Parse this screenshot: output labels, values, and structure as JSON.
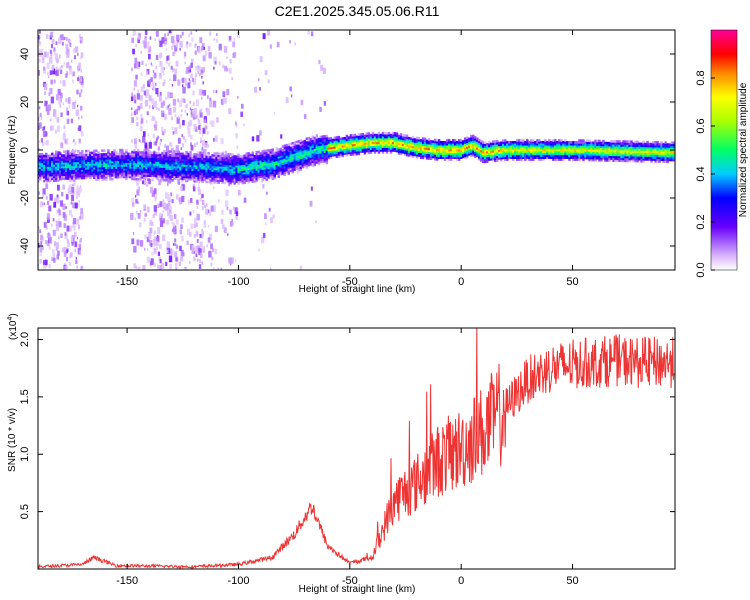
{
  "figure": {
    "title": "C2E1.2025.345.05.06.R11"
  },
  "chart_data": [
    {
      "type": "heatmap",
      "name": "spectrogram",
      "xlabel": "Height of straight line (km)",
      "ylabel": "Frequency (Hz)",
      "xlim": [
        -190,
        96
      ],
      "ylim": [
        -50,
        50
      ],
      "x_ticks": [
        -150,
        -100,
        -50,
        0,
        50
      ],
      "y_ticks": [
        -40,
        -20,
        0,
        20,
        40
      ],
      "colorbar": {
        "label": "Normalized spectral amplitude",
        "range": [
          0.0,
          1.0
        ],
        "ticks": [
          "0.0",
          "0.2",
          "0.4",
          "0.6",
          "0.8"
        ]
      },
      "center_frequency_track": [
        {
          "x": -190,
          "y": -7
        },
        {
          "x": -150,
          "y": -6
        },
        {
          "x": -120,
          "y": -7
        },
        {
          "x": -100,
          "y": -8
        },
        {
          "x": -85,
          "y": -6
        },
        {
          "x": -65,
          "y": 0
        },
        {
          "x": -50,
          "y": 2
        },
        {
          "x": -40,
          "y": 3
        },
        {
          "x": -30,
          "y": 3
        },
        {
          "x": -20,
          "y": 1
        },
        {
          "x": -10,
          "y": 0
        },
        {
          "x": 0,
          "y": 0
        },
        {
          "x": 5,
          "y": 2
        },
        {
          "x": 10,
          "y": -1
        },
        {
          "x": 20,
          "y": 0
        },
        {
          "x": 50,
          "y": 0
        },
        {
          "x": 96,
          "y": -1
        }
      ]
    },
    {
      "type": "line",
      "name": "snr",
      "xlabel": "Height of straight line (km)",
      "ylabel": "SNR (10 * v/v)",
      "y_multiplier_label": "(x10",
      "y_multiplier_exp": "4",
      "y_multiplier_close": ")",
      "xlim": [
        -190,
        96
      ],
      "ylim": [
        0.0,
        2.1
      ],
      "x_ticks": [
        -150,
        -100,
        -50,
        0,
        50
      ],
      "y_ticks": [
        "0.5",
        "1.0",
        "1.5",
        "2.0"
      ],
      "line_color": "#ee3333",
      "series_envelope": [
        {
          "x": -190,
          "y": 0.02
        },
        {
          "x": -170,
          "y": 0.04
        },
        {
          "x": -165,
          "y": 0.1
        },
        {
          "x": -155,
          "y": 0.03
        },
        {
          "x": -120,
          "y": 0.02
        },
        {
          "x": -100,
          "y": 0.04
        },
        {
          "x": -85,
          "y": 0.1
        },
        {
          "x": -75,
          "y": 0.3
        },
        {
          "x": -67,
          "y": 0.55
        },
        {
          "x": -60,
          "y": 0.2
        },
        {
          "x": -50,
          "y": 0.05
        },
        {
          "x": -40,
          "y": 0.1
        },
        {
          "x": -35,
          "y": 0.35
        },
        {
          "x": -30,
          "y": 0.6
        },
        {
          "x": -20,
          "y": 0.75
        },
        {
          "x": -10,
          "y": 0.95
        },
        {
          "x": 0,
          "y": 1.05
        },
        {
          "x": 10,
          "y": 1.2
        },
        {
          "x": 20,
          "y": 1.4
        },
        {
          "x": 30,
          "y": 1.65
        },
        {
          "x": 40,
          "y": 1.75
        },
        {
          "x": 50,
          "y": 1.78
        },
        {
          "x": 60,
          "y": 1.8
        },
        {
          "x": 70,
          "y": 1.82
        },
        {
          "x": 80,
          "y": 1.8
        },
        {
          "x": 96,
          "y": 1.8
        }
      ]
    }
  ]
}
